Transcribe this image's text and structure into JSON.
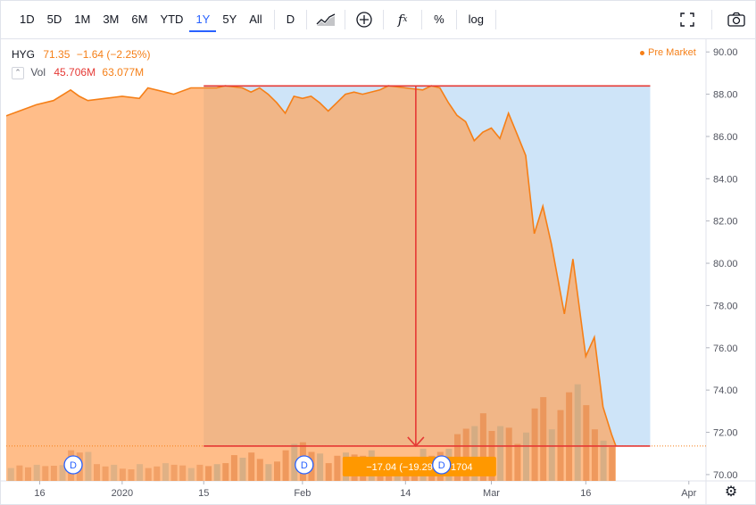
{
  "toolbar": {
    "ranges": [
      "1D",
      "5D",
      "1M",
      "3M",
      "6M",
      "YTD",
      "1Y",
      "5Y",
      "All"
    ],
    "active_range": "1Y",
    "interval_label": "D",
    "chart_type_icon": "candles-icon",
    "compare_icon": "plus-circle-icon",
    "indicators_icon": "fx-icon",
    "percent_label": "%",
    "log_label": "log",
    "fullscreen_icon": "fullscreen-icon",
    "snapshot_icon": "camera-icon"
  },
  "legend": {
    "symbol": "HYG",
    "price": "71.35",
    "change": "−1.64 (−2.25%)",
    "vol_label": "Vol",
    "vol_value1": "45.706M",
    "vol_value2": "63.077M"
  },
  "premarket_label": "Pre Market",
  "measure_label": "−17.04 (−19.29%) -1704",
  "dividend_marker": "D",
  "colors": {
    "line": "#f57f17",
    "area": "#ffa35c",
    "measure_fill": "#b3d6f5",
    "measure_line": "#e53935",
    "axis_text": "#50535e",
    "label_bg": "#ff9800"
  },
  "chart_data": {
    "type": "area",
    "y_ticks": [
      "90.00",
      "88.00",
      "86.00",
      "84.00",
      "82.00",
      "80.00",
      "78.00",
      "76.00",
      "74.00",
      "72.00",
      "70.00"
    ],
    "ylim": [
      69.7,
      90.6
    ],
    "x_ticks": [
      {
        "label": "16",
        "x": 0.4
      },
      {
        "label": "2020",
        "x": 10
      },
      {
        "label": "15",
        "x": 19.5
      },
      {
        "label": "Feb",
        "x": 31
      },
      {
        "label": "14",
        "x": 43
      },
      {
        "label": "Mar",
        "x": 53
      },
      {
        "label": "16",
        "x": 64
      },
      {
        "label": "Apr",
        "x": 76
      }
    ],
    "xlim": [
      -3.5,
      78
    ],
    "price_series": [
      [
        -4.0,
        86.9
      ],
      [
        -2.0,
        87.2
      ],
      [
        0.0,
        87.5
      ],
      [
        2.0,
        87.7
      ],
      [
        4.0,
        88.2
      ],
      [
        5.0,
        87.9
      ],
      [
        6.0,
        87.7
      ],
      [
        8.0,
        87.8
      ],
      [
        10.0,
        87.9
      ],
      [
        12.0,
        87.8
      ],
      [
        13.0,
        88.3
      ],
      [
        15.0,
        88.1
      ],
      [
        16.0,
        88.0
      ],
      [
        18.0,
        88.3
      ],
      [
        20.0,
        88.3
      ],
      [
        21.0,
        88.3
      ],
      [
        22.0,
        88.4
      ],
      [
        24.0,
        88.3
      ],
      [
        25.0,
        88.1
      ],
      [
        26.0,
        88.3
      ],
      [
        27.0,
        88.0
      ],
      [
        28.0,
        87.6
      ],
      [
        29.0,
        87.1
      ],
      [
        30.0,
        87.9
      ],
      [
        31.0,
        87.8
      ],
      [
        32.0,
        87.9
      ],
      [
        33.0,
        87.6
      ],
      [
        34.0,
        87.2
      ],
      [
        35.0,
        87.6
      ],
      [
        36.0,
        88.0
      ],
      [
        37.0,
        88.1
      ],
      [
        38.0,
        88.0
      ],
      [
        40.0,
        88.2
      ],
      [
        41.0,
        88.4
      ],
      [
        43.0,
        88.3
      ],
      [
        45.0,
        88.2
      ],
      [
        46.0,
        88.4
      ],
      [
        47.0,
        88.3
      ],
      [
        48.0,
        87.6
      ],
      [
        49.0,
        87.0
      ],
      [
        50.0,
        86.7
      ],
      [
        51.0,
        85.8
      ],
      [
        52.0,
        86.2
      ],
      [
        53.0,
        86.4
      ],
      [
        54.0,
        85.9
      ],
      [
        55.0,
        87.1
      ],
      [
        56.0,
        86.1
      ],
      [
        57.0,
        85.1
      ],
      [
        58.0,
        81.4
      ],
      [
        59.0,
        82.7
      ],
      [
        60.0,
        80.9
      ],
      [
        61.5,
        77.6
      ],
      [
        62.5,
        80.2
      ],
      [
        64.0,
        75.6
      ],
      [
        65.0,
        76.5
      ],
      [
        66.0,
        73.2
      ],
      [
        67.0,
        71.9
      ],
      [
        67.5,
        71.35
      ]
    ],
    "volume_bars": [
      [
        -4,
        0.45
      ],
      [
        -3,
        0.4
      ],
      [
        -2,
        0.48
      ],
      [
        -1,
        0.42
      ],
      [
        0,
        0.5
      ],
      [
        1,
        0.46
      ],
      [
        2,
        0.47
      ],
      [
        3,
        0.49
      ],
      [
        4,
        0.95
      ],
      [
        5,
        0.88
      ],
      [
        6,
        0.9
      ],
      [
        7,
        0.52
      ],
      [
        8,
        0.45
      ],
      [
        9,
        0.5
      ],
      [
        10,
        0.38
      ],
      [
        11,
        0.36
      ],
      [
        12,
        0.52
      ],
      [
        13,
        0.4
      ],
      [
        14,
        0.45
      ],
      [
        15,
        0.55
      ],
      [
        16,
        0.5
      ],
      [
        17,
        0.48
      ],
      [
        18,
        0.4
      ],
      [
        19,
        0.5
      ],
      [
        20,
        0.46
      ],
      [
        21,
        0.52
      ],
      [
        22,
        0.55
      ],
      [
        23,
        0.8
      ],
      [
        24,
        0.72
      ],
      [
        25,
        0.88
      ],
      [
        26,
        0.68
      ],
      [
        27,
        0.52
      ],
      [
        28,
        0.6
      ],
      [
        29,
        0.95
      ],
      [
        30,
        1.15
      ],
      [
        31,
        1.2
      ],
      [
        32,
        0.9
      ],
      [
        33,
        0.85
      ],
      [
        34,
        0.55
      ],
      [
        35,
        0.78
      ],
      [
        36,
        0.88
      ],
      [
        37,
        0.82
      ],
      [
        38,
        0.78
      ],
      [
        39,
        0.95
      ],
      [
        40,
        0.72
      ],
      [
        41,
        0.5
      ],
      [
        42,
        0.7
      ],
      [
        43,
        0.62
      ],
      [
        44,
        0.75
      ],
      [
        45,
        1.0
      ],
      [
        46,
        0.78
      ],
      [
        47,
        0.9
      ],
      [
        48,
        1.0
      ],
      [
        49,
        1.45
      ],
      [
        50,
        1.62
      ],
      [
        51,
        1.7
      ],
      [
        52,
        2.1
      ],
      [
        53,
        1.55
      ],
      [
        54,
        1.7
      ],
      [
        55,
        1.65
      ],
      [
        56,
        1.15
      ],
      [
        57,
        1.5
      ],
      [
        58,
        2.25
      ],
      [
        59,
        2.6
      ],
      [
        60,
        1.6
      ],
      [
        61,
        2.2
      ],
      [
        62,
        2.75
      ],
      [
        63,
        3.0
      ],
      [
        64,
        2.35
      ],
      [
        65,
        1.6
      ],
      [
        66,
        1.25
      ],
      [
        67,
        1.05
      ]
    ],
    "measure": {
      "x_start": 19.5,
      "x_end": 71.5,
      "y_top": 88.39,
      "y_bottom": 71.35
    },
    "dividend_x": [
      4.3,
      31.2,
      47.2
    ],
    "last_price_line": 71.35
  }
}
